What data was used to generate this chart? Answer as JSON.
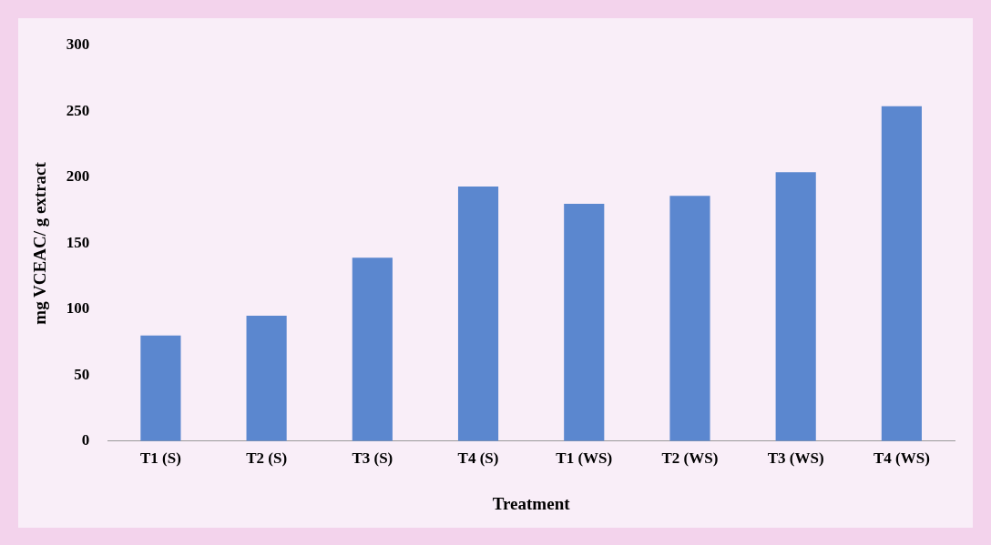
{
  "chart_data": {
    "type": "bar",
    "xlabel": "Treatment",
    "ylabel": "mg VCEAC/ g extract",
    "categories": [
      "T1 (S)",
      "T2 (S)",
      "T3 (S)",
      "T4 (S)",
      "T1 (WS)",
      "T2 (WS)",
      "T3 (WS)",
      "T4 (WS)"
    ],
    "values": [
      80,
      95,
      139,
      193,
      180,
      186,
      204,
      254
    ],
    "color": "#5b87cf",
    "ylim": [
      0,
      300
    ],
    "yticks": [
      0,
      50,
      100,
      150,
      200,
      250,
      300
    ],
    "grid": false,
    "legend": false
  }
}
